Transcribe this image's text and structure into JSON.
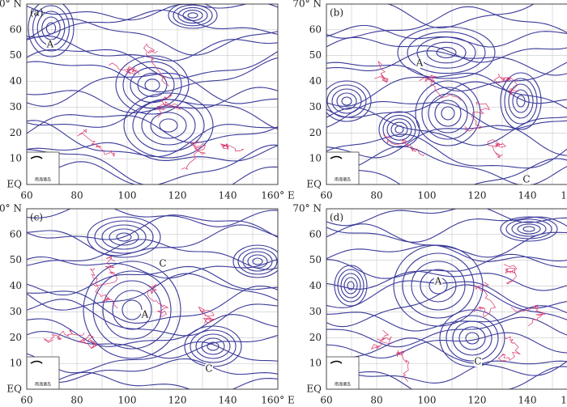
{
  "panels": [
    {
      "label": "(a)",
      "annotations": [
        "A"
      ]
    },
    {
      "label": "(b)",
      "annotations": [
        "A",
        "C"
      ]
    },
    {
      "label": "(c)",
      "annotations": [
        "C",
        "A",
        "C"
      ]
    },
    {
      "label": "(d)",
      "annotations": [
        "A",
        "C"
      ]
    }
  ],
  "xticks": [
    "60",
    "80",
    "100",
    "120",
    "140",
    "160° E"
  ],
  "yticks": [
    "EQ",
    "10",
    "20",
    "30",
    "40",
    "50",
    "60",
    "70° N"
  ],
  "inset_label": "南海诸岛"
}
